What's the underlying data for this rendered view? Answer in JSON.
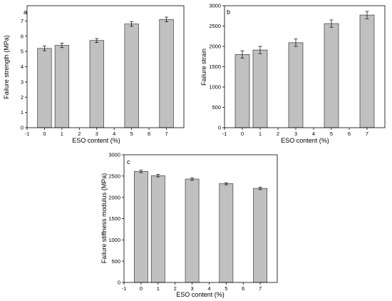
{
  "colors": {
    "bar_fill": "#c0c0c0",
    "bar_stroke": "#3a3a3a",
    "axis": "#000000",
    "error_bar": "#000000"
  },
  "chart_data": [
    {
      "panel_label": "a",
      "type": "bar",
      "xlabel": "ESO content (%)",
      "ylabel": "Failure strength (MPa)",
      "xlim": [
        -1,
        8
      ],
      "ylim": [
        0,
        8
      ],
      "x_ticks": [
        "-1",
        "0",
        "1",
        "2",
        "3",
        "4",
        "5",
        "6",
        "7"
      ],
      "y_ticks": [
        "0",
        "1",
        "2",
        "3",
        "4",
        "5",
        "6",
        "7"
      ],
      "categories": [
        0,
        1,
        3,
        5,
        7
      ],
      "values": [
        5.2,
        5.4,
        5.72,
        6.8,
        7.1
      ],
      "errors": [
        0.15,
        0.15,
        0.13,
        0.15,
        0.15
      ],
      "grid": false
    },
    {
      "panel_label": "b",
      "type": "bar",
      "xlabel": "ESO content (%)",
      "ylabel": "Failure strain",
      "xlim": [
        -1,
        8
      ],
      "ylim": [
        0,
        3000
      ],
      "x_ticks": [
        "-1",
        "0",
        "1",
        "2",
        "3",
        "4",
        "5",
        "6",
        "7"
      ],
      "y_ticks": [
        "0",
        "500",
        "1000",
        "1500",
        "2000",
        "2500",
        "3000"
      ],
      "categories": [
        0,
        1,
        3,
        5,
        7
      ],
      "values": [
        1800,
        1910,
        2090,
        2560,
        2770
      ],
      "errors": [
        90,
        90,
        90,
        90,
        90
      ],
      "grid": false
    },
    {
      "panel_label": "c",
      "type": "bar",
      "xlabel": "ESO content (%)",
      "ylabel": "Failure stiffness modulus (MPa)",
      "xlim": [
        -1,
        8
      ],
      "ylim": [
        0,
        3000
      ],
      "x_ticks": [
        "-1",
        "0",
        "1",
        "2",
        "3",
        "4",
        "5",
        "6",
        "7"
      ],
      "y_ticks": [
        "0",
        "500",
        "1000",
        "1500",
        "2000",
        "2500",
        "3000"
      ],
      "categories": [
        0,
        1,
        3,
        5,
        7
      ],
      "values": [
        2610,
        2510,
        2430,
        2320,
        2210
      ],
      "errors": [
        30,
        30,
        30,
        25,
        30
      ],
      "grid": false
    }
  ]
}
